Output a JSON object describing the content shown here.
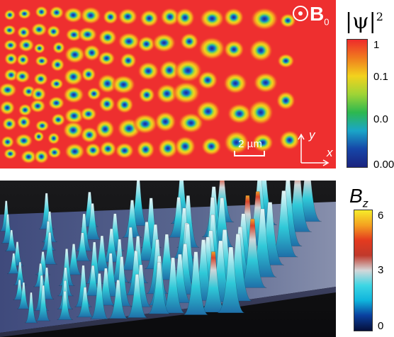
{
  "top_panel": {
    "field_symbol": "B",
    "field_subscript": "0",
    "scale_bar_label": "2 µm",
    "axis_x": "x",
    "axis_y": "y",
    "colorbar_label": "|ψ|",
    "colorbar_superscript": "2",
    "colorbar_ticks": [
      "1",
      "0.1",
      "0.0",
      "0.00"
    ],
    "colorbar_colors": [
      "#ee2b2b",
      "#f07b1e",
      "#f2d21d",
      "#9fd436",
      "#2db84f",
      "#1aa6c8",
      "#1646a8",
      "#1a237e"
    ]
  },
  "bottom_panel": {
    "colorbar_label": "B",
    "colorbar_subscript": "z",
    "colorbar_ticks": [
      "6",
      "3",
      "0"
    ],
    "colorbar_colors": [
      "#f6ec2a",
      "#f4a020",
      "#e43a1f",
      "#c0392b",
      "#d4d7d9",
      "#3cd6e4",
      "#0fb4dc",
      "#0a3f9e",
      "#050f3a"
    ]
  }
}
